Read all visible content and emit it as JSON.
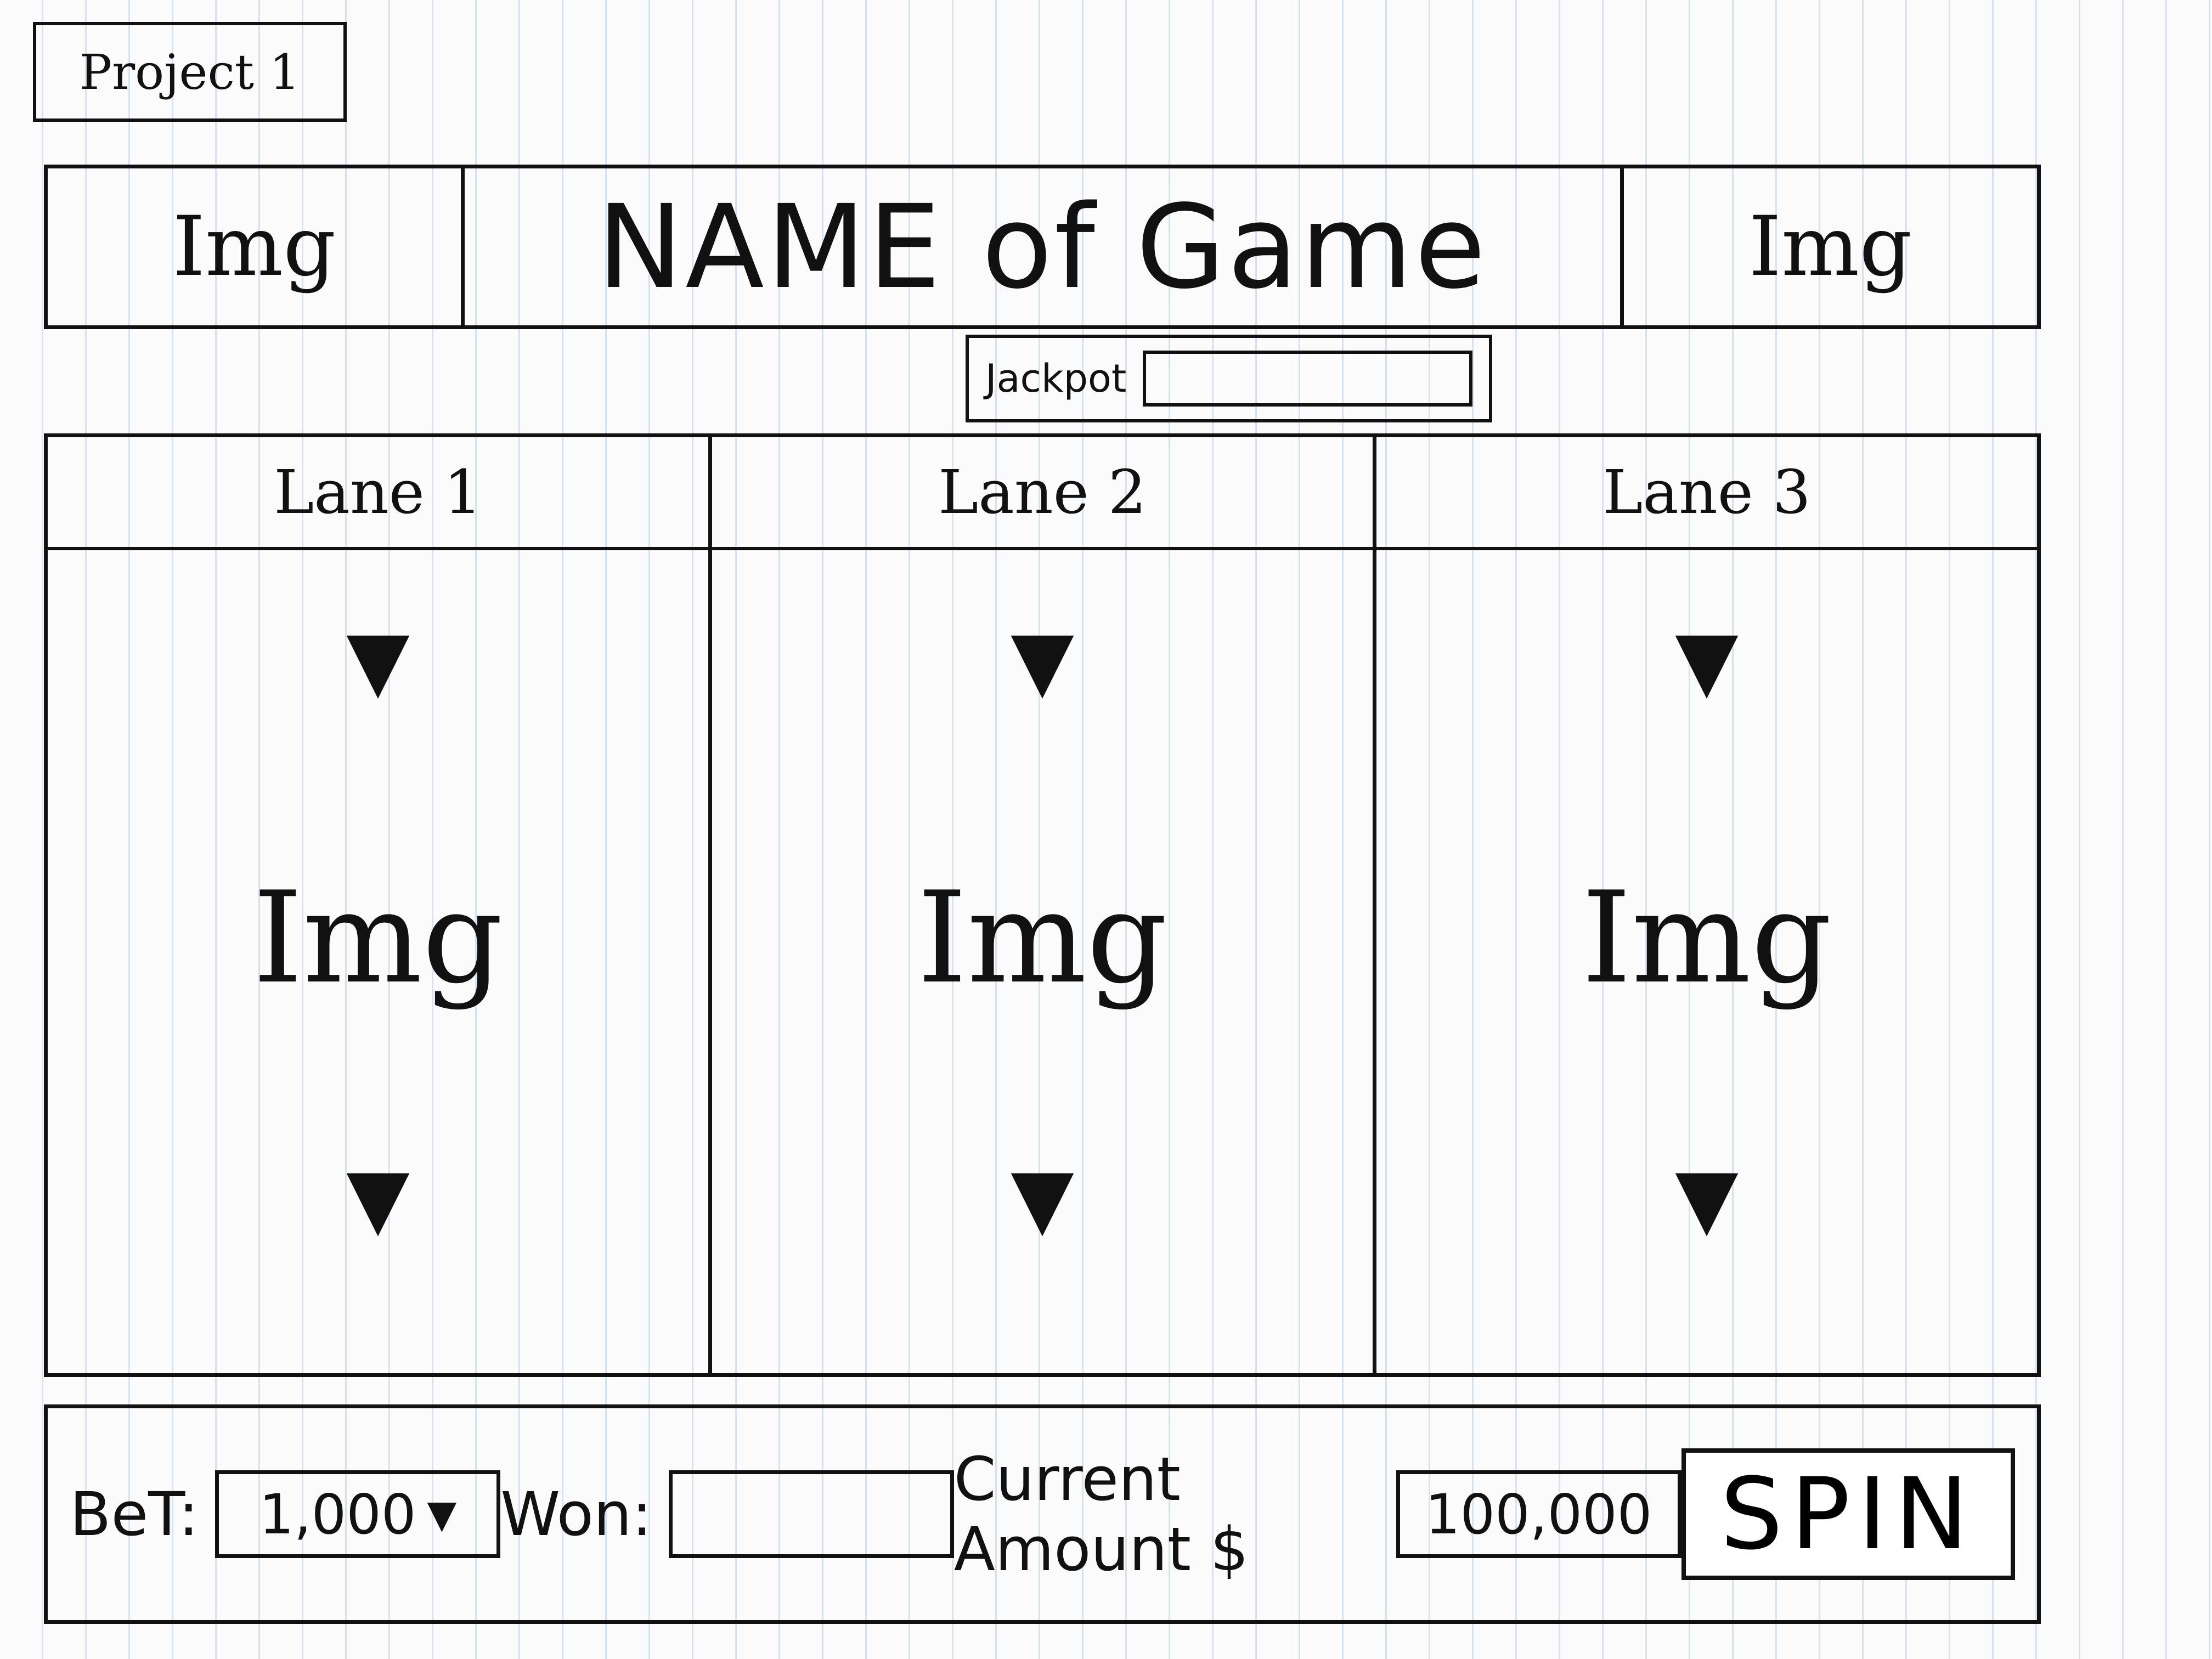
{
  "project": {
    "label": "Project 1"
  },
  "header": {
    "left_img": "Img",
    "title": "NAME of Game",
    "right_img": "Img"
  },
  "jackpot": {
    "label": "Jackpot"
  },
  "lanes": [
    {
      "label": "Lane 1",
      "img": "Img"
    },
    {
      "label": "Lane 2",
      "img": "Img"
    },
    {
      "label": "Lane 3",
      "img": "Img"
    }
  ],
  "controls": {
    "bet_label": "BeT:",
    "bet_value": "1,000",
    "won_label": "Won:",
    "won_value": "",
    "amount_label": "Current Amount $",
    "amount_value": "100,000",
    "spin_label": "SPIN"
  }
}
